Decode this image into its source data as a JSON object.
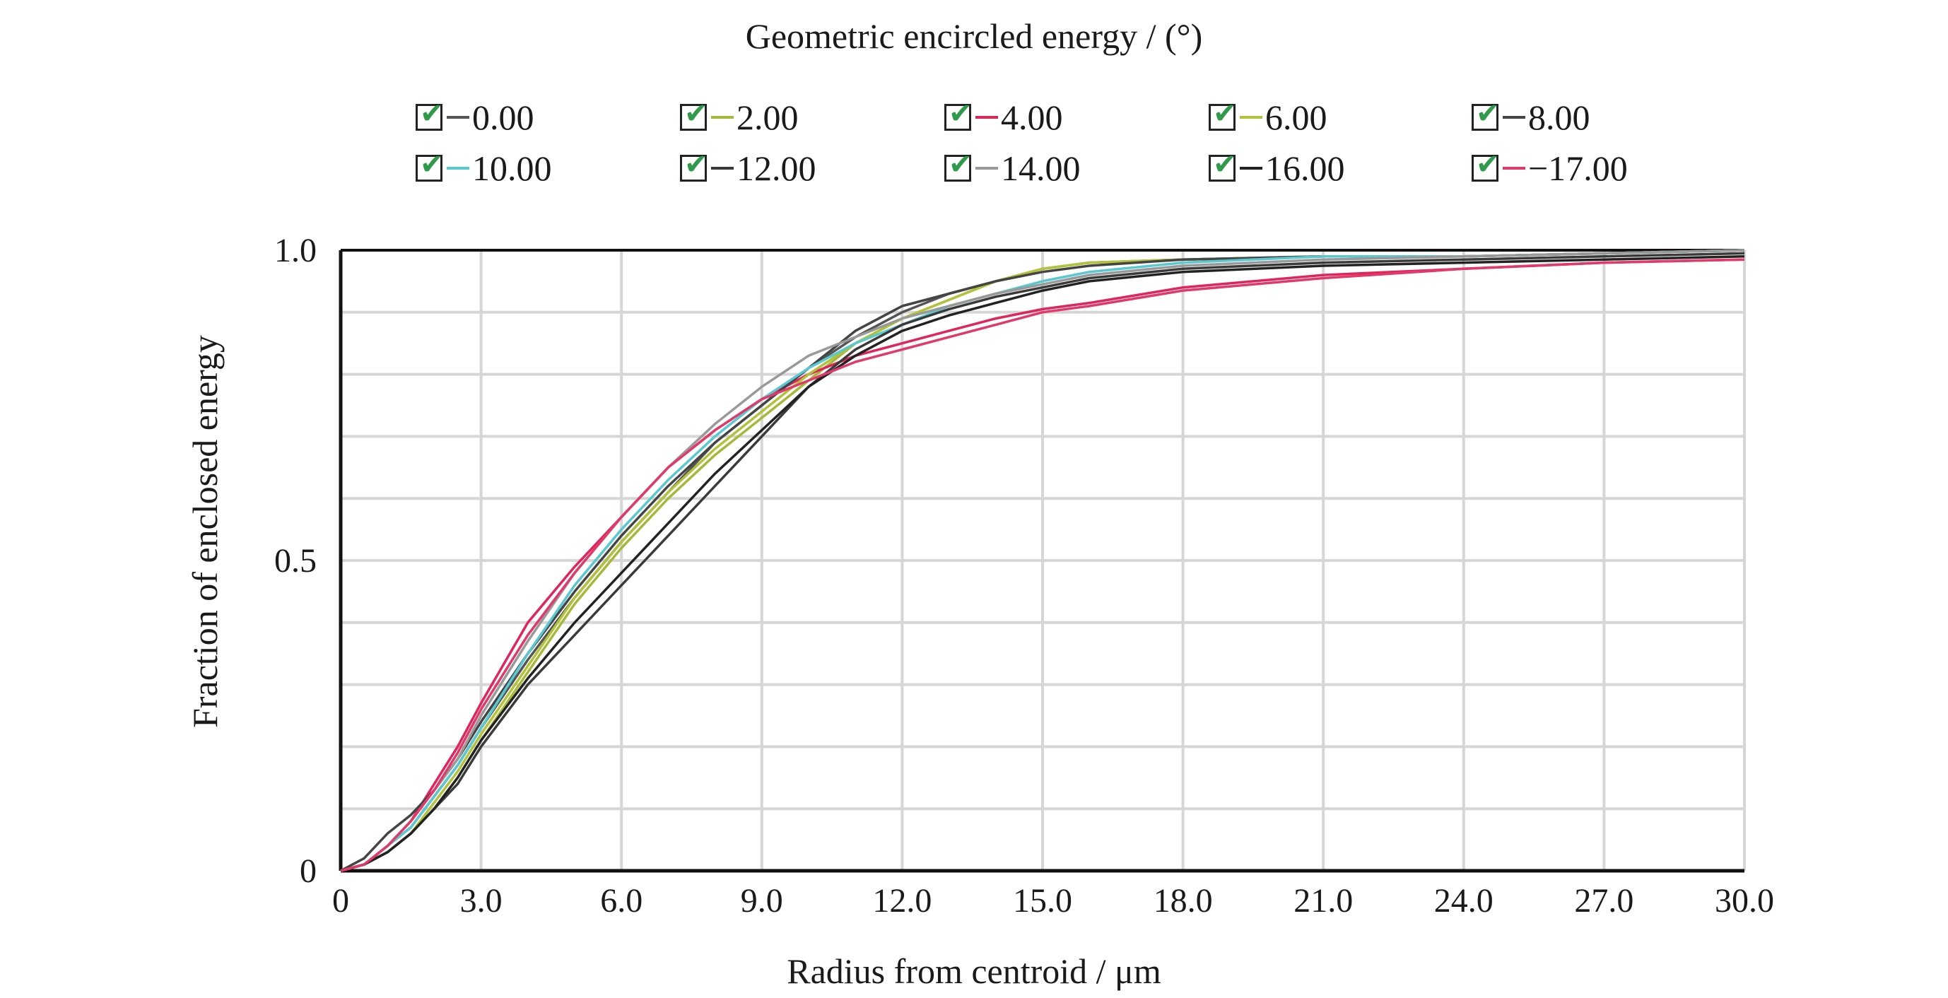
{
  "chart_data": {
    "type": "line",
    "title": "Geometric encircled energy / (°)",
    "xlabel": "Radius from centroid / μm",
    "ylabel": "Fraction of enclosed energy",
    "xlim": [
      0,
      30
    ],
    "ylim": [
      0,
      1
    ],
    "x_ticks": [
      "0",
      "3.0",
      "6.0",
      "9.0",
      "12.0",
      "15.0",
      "18.0",
      "21.0",
      "24.0",
      "27.0",
      "30.0"
    ],
    "y_ticks": [
      "0",
      "0.5",
      "1.0"
    ],
    "grid": true,
    "legend_placement": "top",
    "x": [
      0,
      0.5,
      1,
      1.5,
      2,
      2.5,
      3,
      4,
      5,
      6,
      7,
      8,
      9,
      10,
      11,
      12,
      13,
      14,
      15,
      16,
      18,
      21,
      24,
      27,
      30
    ],
    "series": [
      {
        "name": "0.00",
        "color": "#555555",
        "values": [
          0,
          0.01,
          0.04,
          0.07,
          0.12,
          0.17,
          0.23,
          0.34,
          0.44,
          0.53,
          0.61,
          0.69,
          0.75,
          0.81,
          0.86,
          0.9,
          0.93,
          0.95,
          0.97,
          0.98,
          0.985,
          0.99,
          0.99,
          0.995,
          1.0
        ]
      },
      {
        "name": "2.00",
        "color": "#a6b83a",
        "values": [
          0,
          0.01,
          0.03,
          0.06,
          0.1,
          0.15,
          0.21,
          0.32,
          0.43,
          0.52,
          0.6,
          0.67,
          0.73,
          0.79,
          0.85,
          0.89,
          0.92,
          0.95,
          0.97,
          0.98,
          0.985,
          0.99,
          0.99,
          0.995,
          1.0
        ]
      },
      {
        "name": "4.00",
        "color": "#e0245c",
        "values": [
          0,
          0.01,
          0.04,
          0.08,
          0.14,
          0.2,
          0.27,
          0.4,
          0.49,
          0.57,
          0.65,
          0.71,
          0.76,
          0.8,
          0.83,
          0.85,
          0.87,
          0.89,
          0.905,
          0.915,
          0.94,
          0.96,
          0.97,
          0.98,
          0.985
        ]
      },
      {
        "name": "6.00",
        "color": "#b2c23a",
        "values": [
          0,
          0.01,
          0.03,
          0.06,
          0.11,
          0.16,
          0.22,
          0.33,
          0.44,
          0.53,
          0.61,
          0.68,
          0.74,
          0.8,
          0.85,
          0.89,
          0.92,
          0.95,
          0.97,
          0.98,
          0.985,
          0.99,
          0.99,
          0.995,
          1.0
        ]
      },
      {
        "name": "8.00",
        "color": "#444444",
        "values": [
          0,
          0.02,
          0.06,
          0.09,
          0.13,
          0.18,
          0.24,
          0.35,
          0.45,
          0.54,
          0.62,
          0.69,
          0.75,
          0.81,
          0.87,
          0.91,
          0.93,
          0.95,
          0.965,
          0.975,
          0.985,
          0.99,
          0.99,
          0.995,
          1.0
        ]
      },
      {
        "name": "10.00",
        "color": "#5ac8d0",
        "values": [
          0,
          0.01,
          0.04,
          0.07,
          0.12,
          0.17,
          0.23,
          0.35,
          0.46,
          0.55,
          0.63,
          0.7,
          0.76,
          0.81,
          0.85,
          0.88,
          0.91,
          0.93,
          0.95,
          0.965,
          0.98,
          0.99,
          0.99,
          0.995,
          1.0
        ]
      },
      {
        "name": "12.00",
        "color": "#3a3a3a",
        "values": [
          0,
          0.01,
          0.03,
          0.06,
          0.1,
          0.14,
          0.2,
          0.3,
          0.38,
          0.46,
          0.54,
          0.62,
          0.7,
          0.78,
          0.84,
          0.88,
          0.905,
          0.925,
          0.94,
          0.955,
          0.97,
          0.98,
          0.985,
          0.99,
          0.995
        ]
      },
      {
        "name": "14.00",
        "color": "#999999",
        "values": [
          0,
          0.01,
          0.04,
          0.08,
          0.13,
          0.18,
          0.25,
          0.37,
          0.48,
          0.57,
          0.65,
          0.72,
          0.78,
          0.83,
          0.86,
          0.89,
          0.91,
          0.93,
          0.945,
          0.96,
          0.975,
          0.985,
          0.99,
          0.995,
          1.0
        ]
      },
      {
        "name": "16.00",
        "color": "#222222",
        "values": [
          0,
          0.01,
          0.03,
          0.06,
          0.1,
          0.15,
          0.21,
          0.31,
          0.4,
          0.48,
          0.56,
          0.64,
          0.71,
          0.78,
          0.83,
          0.87,
          0.895,
          0.915,
          0.935,
          0.95,
          0.965,
          0.975,
          0.98,
          0.985,
          0.99
        ]
      },
      {
        "name": "−17.00",
        "color": "#e03a6a",
        "values": [
          0,
          0.01,
          0.04,
          0.08,
          0.13,
          0.19,
          0.26,
          0.38,
          0.48,
          0.57,
          0.65,
          0.71,
          0.76,
          0.79,
          0.82,
          0.84,
          0.86,
          0.88,
          0.9,
          0.91,
          0.935,
          0.955,
          0.97,
          0.98,
          0.985
        ]
      }
    ]
  }
}
